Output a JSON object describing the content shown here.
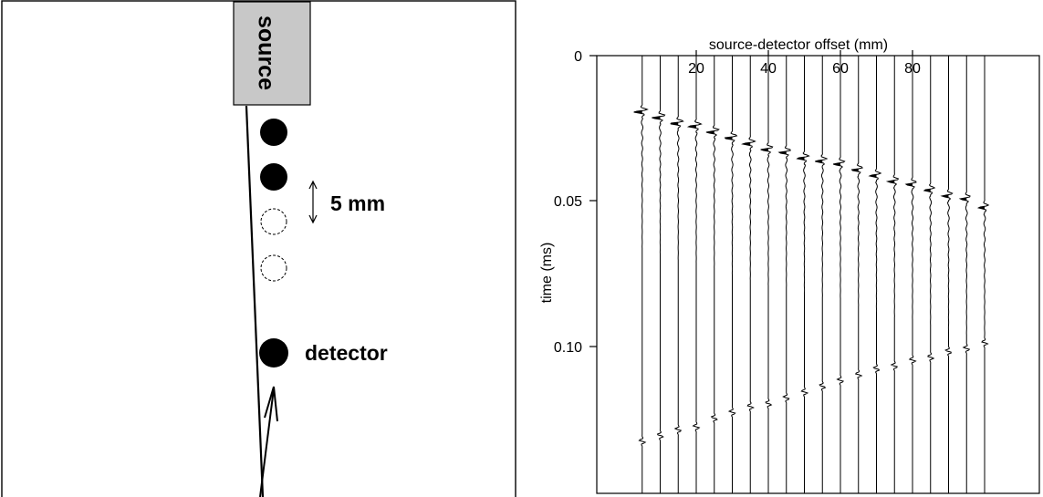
{
  "diagram": {
    "source_label": "source",
    "spacing_label": "5 mm",
    "detector_label": "detector",
    "colors": {
      "source_fill": "#c8c8c8",
      "ink": "#000000"
    }
  },
  "plot": {
    "x_axis_label": "source-detector offset (mm)",
    "y_axis_label": "time (ms)",
    "x_ticks": [
      "20",
      "40",
      "60",
      "80"
    ],
    "y_ticks": [
      "0",
      "0.05",
      "0.10"
    ]
  },
  "chart_data": {
    "type": "line",
    "title": "",
    "xlabel": "source-detector offset (mm)",
    "ylabel": "time (ms)",
    "x_tick_values": [
      20,
      40,
      60,
      80
    ],
    "y_tick_values": [
      0,
      0.05,
      0.1
    ],
    "xlim": [
      5,
      100
    ],
    "ylim": [
      0,
      0.15
    ],
    "y_inverted": true,
    "trace_offsets_mm": [
      5,
      10,
      15,
      20,
      25,
      30,
      35,
      40,
      45,
      50,
      55,
      60,
      65,
      70,
      75,
      80,
      85,
      90,
      95,
      100
    ],
    "direct_arrival_ms": [
      0.019,
      0.021,
      0.023,
      0.024,
      0.026,
      0.028,
      0.03,
      0.032,
      0.033,
      0.035,
      0.036,
      0.037,
      0.039,
      0.041,
      0.043,
      0.044,
      0.046,
      0.048,
      0.049,
      0.052
    ],
    "reflection_arrival_ms": [
      0.133,
      0.131,
      0.129,
      0.128,
      0.125,
      0.123,
      0.121,
      0.12,
      0.118,
      0.116,
      0.114,
      0.112,
      0.11,
      0.108,
      0.107,
      0.105,
      0.104,
      0.102,
      0.101,
      0.099
    ]
  }
}
